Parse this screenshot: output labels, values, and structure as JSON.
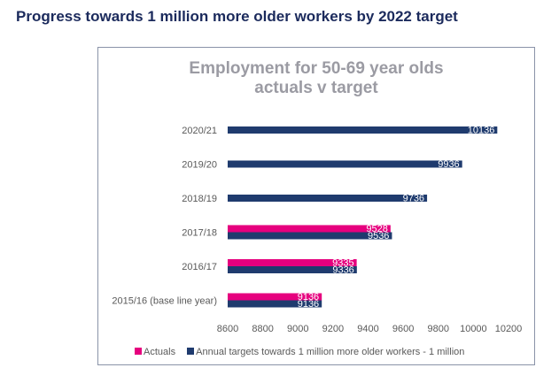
{
  "page": {
    "title": "Progress towards 1 million more older workers by 2022 target"
  },
  "chart_data": {
    "type": "bar",
    "orientation": "horizontal",
    "title_lines": [
      "Employment for 50-69 year olds",
      "actuals v target"
    ],
    "categories": [
      "2015/16 (base line year)",
      "2016/17",
      "2017/18",
      "2018/19",
      "2019/20",
      "2020/21"
    ],
    "series": [
      {
        "name": "Actuals",
        "color": "#e6007e",
        "values": [
          9136,
          9335,
          9528,
          null,
          null,
          null
        ],
        "labels": [
          "9136",
          "9335",
          "9528",
          "",
          "",
          ""
        ]
      },
      {
        "name": "Annual targets towards 1 million more older workers - 1 million",
        "color": "#1f3b6e",
        "values": [
          9136,
          9336,
          9536,
          9736,
          9936,
          10136
        ],
        "labels": [
          "9136",
          "9336",
          "9536",
          "9736",
          "9936",
          "10136"
        ]
      }
    ],
    "xlim": [
      8600,
      10200
    ],
    "xticks": [
      "8600",
      "8800",
      "9000",
      "9200",
      "9400",
      "9600",
      "9800",
      "10000",
      "10200"
    ],
    "grid": false,
    "legend_position": "bottom"
  }
}
